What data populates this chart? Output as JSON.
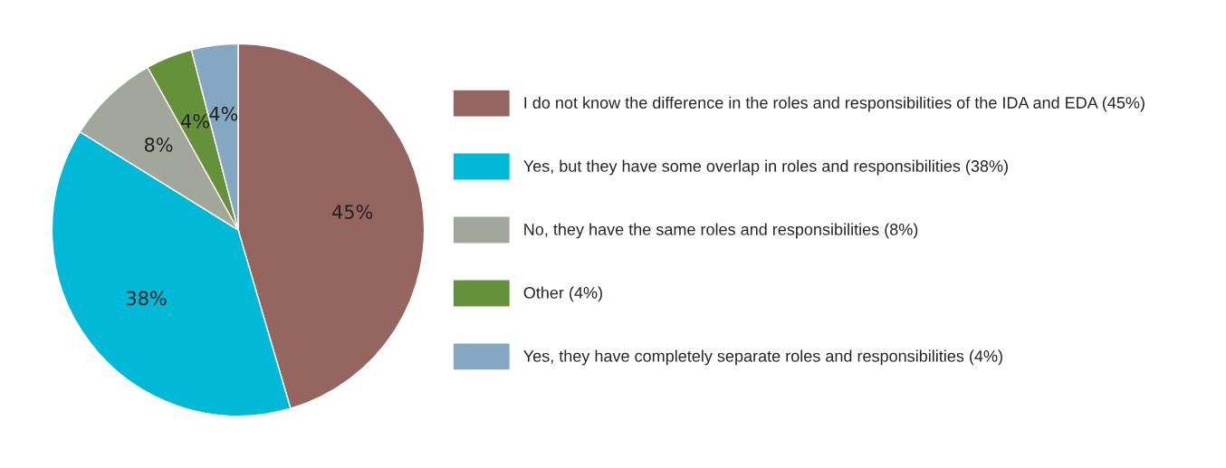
{
  "chart_data": {
    "type": "pie",
    "categories": [
      "I do not know the difference in the roles and responsibilities of the IDA and EDA (45%)",
      "Yes, but they have some overlap in roles and responsibilities (38%)",
      "No, they have the same roles and responsibilities (8%)",
      "Other (4%)",
      "Yes, they have completely separate roles and responsibilities (4%)"
    ],
    "values": [
      45,
      38,
      8,
      4,
      4
    ],
    "colors": [
      "#956560",
      "#00b9d6",
      "#a3a79b",
      "#66913b",
      "#85a8c2"
    ],
    "value_labels": [
      "45%",
      "38%",
      "8%",
      "4%",
      "4%"
    ],
    "legend": "right"
  }
}
